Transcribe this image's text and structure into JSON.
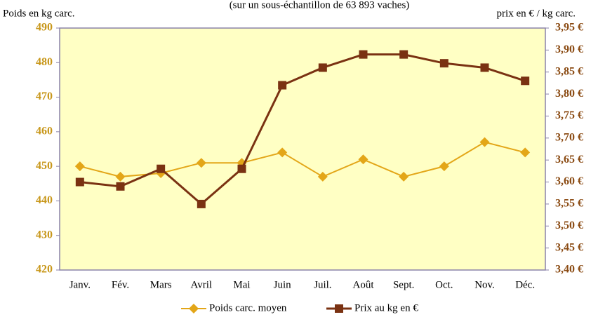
{
  "chart_data": {
    "type": "line",
    "subtitle": "(sur un sous-échantillon de 63 893 vaches)",
    "y_label": "Poids en kg carc.",
    "y2_label": "prix en € / kg carc.",
    "categories": [
      "Janv.",
      "Fév.",
      "Mars",
      "Avril",
      "Mai",
      "Juin",
      "Juil.",
      "Août",
      "Sept.",
      "Oct.",
      "Nov.",
      "Déc."
    ],
    "series": [
      {
        "name": "Poids carc. moyen",
        "color": "#e3a618",
        "marker": "diamond",
        "values": [
          450,
          447,
          448,
          451,
          451,
          454,
          447,
          452,
          447,
          450,
          457,
          454
        ]
      },
      {
        "name": "Prix au kg en €",
        "color": "#7a3212",
        "marker": "square",
        "axis": "y2",
        "values": [
          3.6,
          3.59,
          3.63,
          3.55,
          3.63,
          3.82,
          3.86,
          3.89,
          3.89,
          3.87,
          3.86,
          3.83
        ]
      }
    ],
    "ylim": [
      420,
      490
    ],
    "yticks": [
      420,
      430,
      440,
      450,
      460,
      470,
      480,
      490
    ],
    "y2lim": [
      3.4,
      3.95
    ],
    "y2ticks": [
      {
        "value": 3.4,
        "label": "3,40 €"
      },
      {
        "value": 3.45,
        "label": "3,45 €"
      },
      {
        "value": 3.5,
        "label": "3,50 €"
      },
      {
        "value": 3.55,
        "label": "3,55 €"
      },
      {
        "value": 3.6,
        "label": "3,60 €"
      },
      {
        "value": 3.65,
        "label": "3,65 €"
      },
      {
        "value": 3.7,
        "label": "3,70 €"
      },
      {
        "value": 3.75,
        "label": "3,75 €"
      },
      {
        "value": 3.8,
        "label": "3,80 €"
      },
      {
        "value": 3.85,
        "label": "3,85 €"
      },
      {
        "value": 3.9,
        "label": "3,90 €"
      },
      {
        "value": 3.95,
        "label": "3,95 €"
      }
    ],
    "plot_background": "#ffffc4",
    "legend": "bottom"
  }
}
